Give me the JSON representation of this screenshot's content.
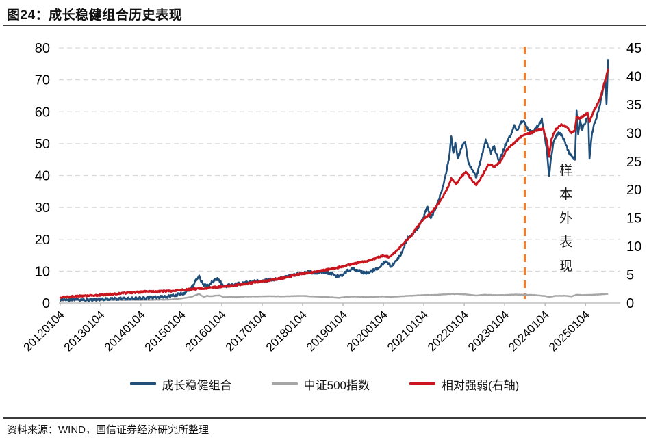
{
  "header": {
    "title": "图24：成长稳健组合历史表现"
  },
  "footer": {
    "source": "资料来源：WIND，国信证券经济研究所整理"
  },
  "annotation": {
    "label": "样本外表现",
    "line_x": 2023.5,
    "color": "#ED7D31",
    "text_color": "#1a1a1a"
  },
  "colors": {
    "axis_line": "#BFBFBF",
    "grid": "#D9D9D9",
    "rule": "#3b3b3b"
  },
  "chart_data": {
    "type": "line",
    "title": "",
    "legend_position": "bottom",
    "grid": {
      "on": true,
      "dashed": true,
      "color": "#D9D9D9"
    },
    "x_axis": {
      "range": [
        2011.97,
        2025.86
      ],
      "tick_years": [
        2012,
        2013,
        2014,
        2015,
        2016,
        2017,
        2018,
        2019,
        2020,
        2021,
        2022,
        2023,
        2024,
        2025
      ],
      "tick_labels": [
        "20120104",
        "20130104",
        "20140104",
        "20150104",
        "20160104",
        "20170104",
        "20180104",
        "20190104",
        "20200104",
        "20210104",
        "20220104",
        "20230104",
        "20240104",
        "20250104"
      ]
    },
    "left_axis": {
      "range": [
        0,
        80
      ],
      "ticks": [
        0,
        10,
        20,
        30,
        40,
        50,
        60,
        70,
        80
      ]
    },
    "right_axis": {
      "range": [
        0,
        45
      ],
      "ticks": [
        0,
        5,
        10,
        15,
        20,
        25,
        30,
        35,
        40,
        45
      ]
    },
    "series": [
      {
        "name": "成长稳健组合",
        "axis": "left",
        "color": "#1F4E79",
        "width": 2.6,
        "noise": 0.45,
        "points": [
          [
            2012.0,
            1.0
          ],
          [
            2012.17,
            1.05
          ],
          [
            2012.33,
            1.1
          ],
          [
            2012.5,
            1.05
          ],
          [
            2012.67,
            1.0
          ],
          [
            2012.83,
            1.05
          ],
          [
            2013.0,
            1.15
          ],
          [
            2013.25,
            1.3
          ],
          [
            2013.5,
            1.35
          ],
          [
            2013.75,
            1.5
          ],
          [
            2014.0,
            1.6
          ],
          [
            2014.25,
            1.7
          ],
          [
            2014.5,
            1.85
          ],
          [
            2014.75,
            2.2
          ],
          [
            2014.9,
            2.6
          ],
          [
            2015.0,
            2.9
          ],
          [
            2015.1,
            3.3
          ],
          [
            2015.2,
            4.3
          ],
          [
            2015.3,
            5.6
          ],
          [
            2015.38,
            7.6
          ],
          [
            2015.44,
            8.8
          ],
          [
            2015.48,
            7.0
          ],
          [
            2015.52,
            6.4
          ],
          [
            2015.56,
            5.5
          ],
          [
            2015.62,
            5.6
          ],
          [
            2015.68,
            5.3
          ],
          [
            2015.75,
            6.6
          ],
          [
            2015.82,
            7.1
          ],
          [
            2015.88,
            7.5
          ],
          [
            2015.95,
            7.0
          ],
          [
            2016.02,
            5.6
          ],
          [
            2016.08,
            5.2
          ],
          [
            2016.2,
            5.8
          ],
          [
            2016.35,
            6.0
          ],
          [
            2016.5,
            6.2
          ],
          [
            2016.65,
            6.5
          ],
          [
            2016.8,
            6.8
          ],
          [
            2016.95,
            6.9
          ],
          [
            2017.1,
            7.1
          ],
          [
            2017.25,
            7.4
          ],
          [
            2017.4,
            7.7
          ],
          [
            2017.55,
            8.1
          ],
          [
            2017.7,
            8.5
          ],
          [
            2017.85,
            9.0
          ],
          [
            2018.0,
            9.4
          ],
          [
            2018.15,
            9.8
          ],
          [
            2018.3,
            9.5
          ],
          [
            2018.45,
            9.8
          ],
          [
            2018.6,
            9.6
          ],
          [
            2018.75,
            9.1
          ],
          [
            2018.87,
            8.3
          ],
          [
            2019.0,
            8.9
          ],
          [
            2019.12,
            10.2
          ],
          [
            2019.25,
            10.8
          ],
          [
            2019.4,
            10.0
          ],
          [
            2019.55,
            9.4
          ],
          [
            2019.7,
            9.9
          ],
          [
            2019.85,
            10.9
          ],
          [
            2020.0,
            12.4
          ],
          [
            2020.08,
            13.3
          ],
          [
            2020.18,
            11.5
          ],
          [
            2020.3,
            13.0
          ],
          [
            2020.42,
            15.0
          ],
          [
            2020.52,
            18.0
          ],
          [
            2020.6,
            20.5
          ],
          [
            2020.7,
            21.5
          ],
          [
            2020.8,
            22.5
          ],
          [
            2020.9,
            24.5
          ],
          [
            2021.0,
            27.0
          ],
          [
            2021.08,
            30.5
          ],
          [
            2021.16,
            26.5
          ],
          [
            2021.25,
            28.5
          ],
          [
            2021.35,
            31.5
          ],
          [
            2021.45,
            35.5
          ],
          [
            2021.55,
            41.0
          ],
          [
            2021.63,
            46.0
          ],
          [
            2021.68,
            52.5
          ],
          [
            2021.73,
            47.0
          ],
          [
            2021.78,
            50.0
          ],
          [
            2021.84,
            45.5
          ],
          [
            2021.9,
            47.5
          ],
          [
            2021.96,
            49.5
          ],
          [
            2022.02,
            50.5
          ],
          [
            2022.1,
            44.0
          ],
          [
            2022.18,
            42.5
          ],
          [
            2022.25,
            40.5
          ],
          [
            2022.3,
            39.5
          ],
          [
            2022.38,
            43.5
          ],
          [
            2022.46,
            47.5
          ],
          [
            2022.53,
            51.0
          ],
          [
            2022.6,
            49.0
          ],
          [
            2022.66,
            47.0
          ],
          [
            2022.73,
            49.5
          ],
          [
            2022.8,
            46.5
          ],
          [
            2022.86,
            44.5
          ],
          [
            2022.93,
            46.5
          ],
          [
            2023.0,
            49.0
          ],
          [
            2023.08,
            51.0
          ],
          [
            2023.16,
            53.0
          ],
          [
            2023.24,
            55.5
          ],
          [
            2023.32,
            54.0
          ],
          [
            2023.4,
            56.5
          ],
          [
            2023.48,
            57.0
          ],
          [
            2023.55,
            55.0
          ],
          [
            2023.62,
            54.0
          ],
          [
            2023.7,
            53.5
          ],
          [
            2023.78,
            55.0
          ],
          [
            2023.85,
            56.0
          ],
          [
            2023.92,
            57.5
          ],
          [
            2024.0,
            51.5
          ],
          [
            2024.05,
            47.5
          ],
          [
            2024.1,
            39.5
          ],
          [
            2024.14,
            45.0
          ],
          [
            2024.2,
            50.0
          ],
          [
            2024.28,
            52.5
          ],
          [
            2024.36,
            53.5
          ],
          [
            2024.44,
            52.0
          ],
          [
            2024.52,
            49.5
          ],
          [
            2024.6,
            47.0
          ],
          [
            2024.68,
            45.5
          ],
          [
            2024.74,
            45.0
          ],
          [
            2024.78,
            60.0
          ],
          [
            2024.82,
            53.0
          ],
          [
            2024.87,
            57.0
          ],
          [
            2024.92,
            54.5
          ],
          [
            2024.97,
            56.0
          ],
          [
            2025.02,
            57.5
          ],
          [
            2025.07,
            58.5
          ],
          [
            2025.1,
            45.0
          ],
          [
            2025.15,
            52.0
          ],
          [
            2025.2,
            55.5
          ],
          [
            2025.27,
            58.0
          ],
          [
            2025.33,
            61.0
          ],
          [
            2025.4,
            64.5
          ],
          [
            2025.45,
            68.0
          ],
          [
            2025.49,
            70.5
          ],
          [
            2025.52,
            62.0
          ],
          [
            2025.56,
            76.5
          ]
        ]
      },
      {
        "name": "中证500指数",
        "axis": "left",
        "color": "#A6A6A6",
        "width": 2.4,
        "noise": 0.05,
        "points": [
          [
            2012.0,
            1.0
          ],
          [
            2012.3,
            0.95
          ],
          [
            2012.6,
            0.9
          ],
          [
            2012.9,
            0.88
          ],
          [
            2013.2,
            0.98
          ],
          [
            2013.5,
            0.93
          ],
          [
            2013.8,
            0.95
          ],
          [
            2014.1,
            0.97
          ],
          [
            2014.4,
            1.0
          ],
          [
            2014.7,
            1.1
          ],
          [
            2014.9,
            1.3
          ],
          [
            2015.1,
            1.6
          ],
          [
            2015.25,
            1.95
          ],
          [
            2015.38,
            2.6
          ],
          [
            2015.44,
            2.9
          ],
          [
            2015.5,
            2.3
          ],
          [
            2015.56,
            1.95
          ],
          [
            2015.64,
            2.3
          ],
          [
            2015.72,
            2.1
          ],
          [
            2015.85,
            2.35
          ],
          [
            2015.95,
            2.4
          ],
          [
            2016.05,
            1.85
          ],
          [
            2016.3,
            1.95
          ],
          [
            2016.6,
            2.05
          ],
          [
            2016.9,
            2.1
          ],
          [
            2017.2,
            2.15
          ],
          [
            2017.5,
            2.1
          ],
          [
            2017.8,
            2.2
          ],
          [
            2018.0,
            2.25
          ],
          [
            2018.3,
            2.05
          ],
          [
            2018.6,
            1.9
          ],
          [
            2018.9,
            1.65
          ],
          [
            2019.1,
            1.95
          ],
          [
            2019.3,
            2.05
          ],
          [
            2019.6,
            1.9
          ],
          [
            2019.85,
            2.0
          ],
          [
            2020.0,
            2.1
          ],
          [
            2020.18,
            1.9
          ],
          [
            2020.4,
            2.1
          ],
          [
            2020.6,
            2.25
          ],
          [
            2020.85,
            2.4
          ],
          [
            2021.0,
            2.5
          ],
          [
            2021.3,
            2.55
          ],
          [
            2021.6,
            2.8
          ],
          [
            2021.8,
            2.85
          ],
          [
            2022.0,
            2.75
          ],
          [
            2022.2,
            2.5
          ],
          [
            2022.3,
            2.35
          ],
          [
            2022.5,
            2.6
          ],
          [
            2022.75,
            2.5
          ],
          [
            2023.0,
            2.5
          ],
          [
            2023.25,
            2.65
          ],
          [
            2023.5,
            2.6
          ],
          [
            2023.75,
            2.5
          ],
          [
            2024.0,
            2.2
          ],
          [
            2024.1,
            1.9
          ],
          [
            2024.25,
            2.25
          ],
          [
            2024.5,
            2.3
          ],
          [
            2024.65,
            2.1
          ],
          [
            2024.78,
            2.6
          ],
          [
            2024.9,
            2.5
          ],
          [
            2025.1,
            2.55
          ],
          [
            2025.3,
            2.65
          ],
          [
            2025.56,
            2.9
          ]
        ]
      },
      {
        "name": "相对强弱(右轴)",
        "axis": "right",
        "color": "#C9151E",
        "width": 2.9,
        "noise": 0.15,
        "points": [
          [
            2012.0,
            1.0
          ],
          [
            2012.3,
            1.15
          ],
          [
            2012.6,
            1.25
          ],
          [
            2012.9,
            1.35
          ],
          [
            2013.2,
            1.55
          ],
          [
            2013.5,
            1.7
          ],
          [
            2013.8,
            1.85
          ],
          [
            2014.1,
            2.0
          ],
          [
            2014.4,
            2.05
          ],
          [
            2014.7,
            2.1
          ],
          [
            2015.0,
            2.3
          ],
          [
            2015.3,
            2.45
          ],
          [
            2015.44,
            2.55
          ],
          [
            2015.6,
            2.6
          ],
          [
            2015.8,
            2.75
          ],
          [
            2016.0,
            2.9
          ],
          [
            2016.3,
            3.1
          ],
          [
            2016.6,
            3.4
          ],
          [
            2016.9,
            3.75
          ],
          [
            2017.2,
            4.0
          ],
          [
            2017.5,
            4.4
          ],
          [
            2017.8,
            4.9
          ],
          [
            2018.0,
            5.2
          ],
          [
            2018.3,
            5.5
          ],
          [
            2018.6,
            5.9
          ],
          [
            2018.85,
            6.2
          ],
          [
            2019.0,
            6.5
          ],
          [
            2019.3,
            7.0
          ],
          [
            2019.6,
            7.4
          ],
          [
            2019.85,
            8.0
          ],
          [
            2020.0,
            8.4
          ],
          [
            2020.15,
            8.1
          ],
          [
            2020.3,
            9.0
          ],
          [
            2020.5,
            10.5
          ],
          [
            2020.7,
            12.0
          ],
          [
            2020.85,
            13.5
          ],
          [
            2021.0,
            15.0
          ],
          [
            2021.15,
            15.6
          ],
          [
            2021.3,
            17.0
          ],
          [
            2021.45,
            18.5
          ],
          [
            2021.6,
            20.5
          ],
          [
            2021.68,
            22.0
          ],
          [
            2021.8,
            21.0
          ],
          [
            2021.95,
            22.5
          ],
          [
            2022.05,
            23.2
          ],
          [
            2022.2,
            21.5
          ],
          [
            2022.3,
            20.8
          ],
          [
            2022.45,
            22.5
          ],
          [
            2022.6,
            24.5
          ],
          [
            2022.75,
            24.0
          ],
          [
            2022.9,
            25.0
          ],
          [
            2023.05,
            27.0
          ],
          [
            2023.2,
            28.0
          ],
          [
            2023.35,
            29.0
          ],
          [
            2023.5,
            29.8
          ],
          [
            2023.65,
            30.0
          ],
          [
            2023.8,
            30.5
          ],
          [
            2023.95,
            30.8
          ],
          [
            2024.05,
            28.5
          ],
          [
            2024.1,
            25.8
          ],
          [
            2024.16,
            29.0
          ],
          [
            2024.25,
            30.5
          ],
          [
            2024.4,
            31.5
          ],
          [
            2024.55,
            31.0
          ],
          [
            2024.65,
            30.0
          ],
          [
            2024.74,
            30.5
          ],
          [
            2024.78,
            33.0
          ],
          [
            2024.85,
            32.5
          ],
          [
            2024.95,
            33.0
          ],
          [
            2025.05,
            33.5
          ],
          [
            2025.1,
            32.0
          ],
          [
            2025.18,
            33.5
          ],
          [
            2025.25,
            34.5
          ],
          [
            2025.33,
            35.5
          ],
          [
            2025.4,
            37.0
          ],
          [
            2025.45,
            38.5
          ],
          [
            2025.5,
            39.5
          ],
          [
            2025.56,
            41.3
          ]
        ]
      }
    ]
  }
}
